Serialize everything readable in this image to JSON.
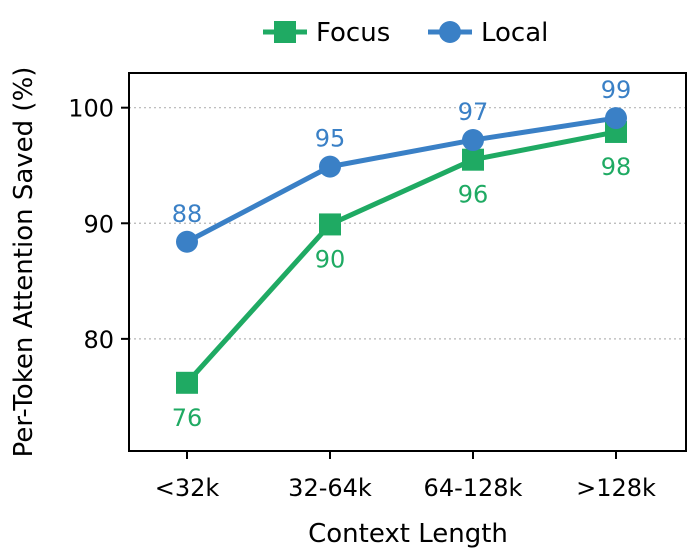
{
  "chart_data": {
    "type": "line",
    "title": "",
    "xlabel": "Context Length",
    "ylabel": "Per-Token Attention Saved (%)",
    "categories": [
      "<32k",
      "32-64k",
      "64-128k",
      ">128k"
    ],
    "ylim": [
      70.3,
      103.0
    ],
    "yticks": [
      80,
      90,
      100
    ],
    "grid": "y-dotted",
    "legend_position": "top-center",
    "series": [
      {
        "name": "Focus",
        "marker": "square",
        "color": "#1faa63",
        "values": [
          76.2,
          89.9,
          95.5,
          97.9
        ],
        "labels": [
          "76",
          "90",
          "96",
          "98"
        ],
        "label_position": "below"
      },
      {
        "name": "Local",
        "marker": "circle",
        "color": "#3a80c6",
        "values": [
          88.4,
          94.9,
          97.2,
          99.1
        ],
        "labels": [
          "88",
          "95",
          "97",
          "99"
        ],
        "label_position": "above"
      }
    ]
  }
}
